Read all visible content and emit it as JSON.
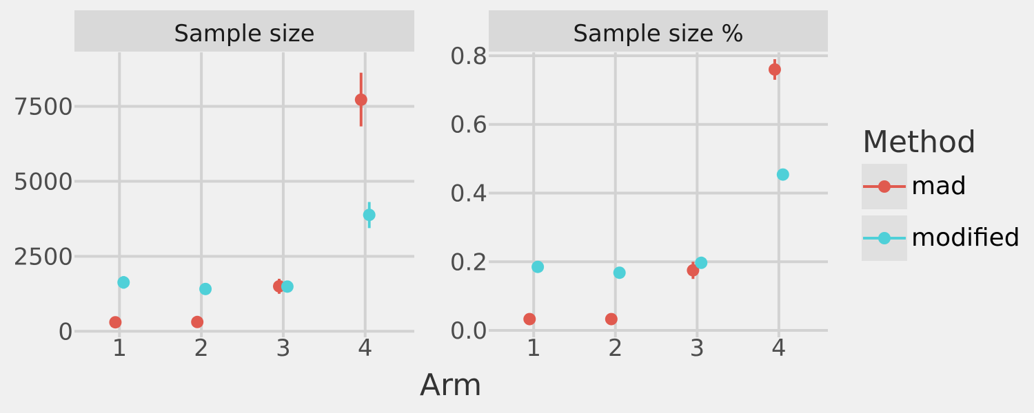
{
  "chart_data": {
    "type": "scatter",
    "xlabel": "Arm",
    "legend": {
      "title": "Method",
      "placement": "right",
      "entries": [
        {
          "name": "mad",
          "color": "#e05a4f"
        },
        {
          "name": "modified",
          "color": "#4fd0d8"
        }
      ]
    },
    "grid": true,
    "panels": [
      {
        "title": "Sample size",
        "x_ticks": [
          "1",
          "2",
          "3",
          "4"
        ],
        "y_ticks": [
          "0",
          "2500",
          "5000",
          "7500"
        ],
        "y_tick_values": [
          0,
          2500,
          5000,
          7500
        ],
        "xlim": [
          0.45,
          4.6
        ],
        "ylim": [
          -200,
          9300
        ],
        "series": [
          {
            "name": "mad",
            "points": [
              {
                "x": 1,
                "y": 300,
                "lo": 250,
                "hi": 350
              },
              {
                "x": 2,
                "y": 310,
                "lo": 260,
                "hi": 360
              },
              {
                "x": 3,
                "y": 1500,
                "lo": 1250,
                "hi": 1750
              },
              {
                "x": 4,
                "y": 7720,
                "lo": 6830,
                "hi": 8620
              }
            ]
          },
          {
            "name": "modified",
            "points": [
              {
                "x": 1,
                "y": 1630,
                "lo": 1420,
                "hi": 1840
              },
              {
                "x": 2,
                "y": 1410,
                "lo": 1330,
                "hi": 1490
              },
              {
                "x": 3,
                "y": 1490,
                "lo": 1390,
                "hi": 1590
              },
              {
                "x": 4,
                "y": 3880,
                "lo": 3440,
                "hi": 4310
              }
            ]
          }
        ]
      },
      {
        "title": "Sample size %",
        "x_ticks": [
          "1",
          "2",
          "3",
          "4"
        ],
        "y_ticks": [
          "0.0",
          "0.2",
          "0.4",
          "0.6",
          "0.8"
        ],
        "y_tick_values": [
          0,
          0.2,
          0.4,
          0.6,
          0.8
        ],
        "xlim": [
          0.45,
          4.6
        ],
        "ylim": [
          -0.02,
          0.81
        ],
        "series": [
          {
            "name": "mad",
            "points": [
              {
                "x": 1,
                "y": 0.033,
                "lo": 0.028,
                "hi": 0.038
              },
              {
                "x": 2,
                "y": 0.033,
                "lo": 0.028,
                "hi": 0.038
              },
              {
                "x": 3,
                "y": 0.175,
                "lo": 0.15,
                "hi": 0.2
              },
              {
                "x": 4,
                "y": 0.76,
                "lo": 0.73,
                "hi": 0.79
              }
            ]
          },
          {
            "name": "modified",
            "points": [
              {
                "x": 1,
                "y": 0.185,
                "lo": 0.175,
                "hi": 0.195
              },
              {
                "x": 2,
                "y": 0.168,
                "lo": 0.158,
                "hi": 0.178
              },
              {
                "x": 3,
                "y": 0.197,
                "lo": 0.187,
                "hi": 0.207
              },
              {
                "x": 4,
                "y": 0.454,
                "lo": 0.444,
                "hi": 0.464
              }
            ]
          }
        ]
      }
    ]
  }
}
